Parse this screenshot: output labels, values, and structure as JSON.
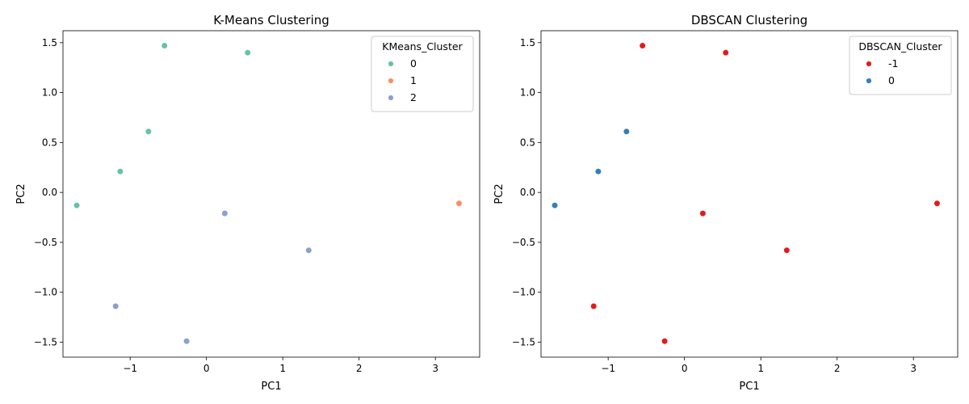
{
  "chart_data": [
    {
      "type": "scatter",
      "title": "K-Means Clustering",
      "xlabel": "PC1",
      "ylabel": "PC2",
      "xlim": [
        -1.88,
        3.58
      ],
      "ylim": [
        -1.65,
        1.62
      ],
      "xticks": [
        {
          "value": -1,
          "label": "−1"
        },
        {
          "value": 0,
          "label": "0"
        },
        {
          "value": 1,
          "label": "1"
        },
        {
          "value": 2,
          "label": "2"
        },
        {
          "value": 3,
          "label": "3"
        }
      ],
      "yticks": [
        {
          "value": -1.5,
          "label": "−1.5"
        },
        {
          "value": -1.0,
          "label": "−1.0"
        },
        {
          "value": -0.5,
          "label": "−0.5"
        },
        {
          "value": 0.0,
          "label": "0.0"
        },
        {
          "value": 0.5,
          "label": "0.5"
        },
        {
          "value": 1.0,
          "label": "1.0"
        },
        {
          "value": 1.5,
          "label": "1.5"
        }
      ],
      "legend": {
        "title": "KMeans_Cluster",
        "position": "upper right",
        "entries": [
          {
            "label": "0",
            "color": "#66c2a5"
          },
          {
            "label": "1",
            "color": "#fc8d62"
          },
          {
            "label": "2",
            "color": "#8da0cb"
          }
        ]
      },
      "points": [
        {
          "x": -0.55,
          "y": 1.47,
          "cluster": "0"
        },
        {
          "x": 0.54,
          "y": 1.4,
          "cluster": "0"
        },
        {
          "x": -0.76,
          "y": 0.61,
          "cluster": "0"
        },
        {
          "x": -1.13,
          "y": 0.21,
          "cluster": "0"
        },
        {
          "x": -1.7,
          "y": -0.13,
          "cluster": "0"
        },
        {
          "x": 3.31,
          "y": -0.11,
          "cluster": "1"
        },
        {
          "x": 0.24,
          "y": -0.21,
          "cluster": "2"
        },
        {
          "x": 1.34,
          "y": -0.58,
          "cluster": "2"
        },
        {
          "x": -1.19,
          "y": -1.14,
          "cluster": "2"
        },
        {
          "x": -0.26,
          "y": -1.49,
          "cluster": "2"
        }
      ]
    },
    {
      "type": "scatter",
      "title": "DBSCAN Clustering",
      "xlabel": "PC1",
      "ylabel": "PC2",
      "xlim": [
        -1.88,
        3.58
      ],
      "ylim": [
        -1.65,
        1.62
      ],
      "xticks": [
        {
          "value": -1,
          "label": "−1"
        },
        {
          "value": 0,
          "label": "0"
        },
        {
          "value": 1,
          "label": "1"
        },
        {
          "value": 2,
          "label": "2"
        },
        {
          "value": 3,
          "label": "3"
        }
      ],
      "yticks": [
        {
          "value": -1.5,
          "label": "−1.5"
        },
        {
          "value": -1.0,
          "label": "−1.0"
        },
        {
          "value": -0.5,
          "label": "−0.5"
        },
        {
          "value": 0.0,
          "label": "0.0"
        },
        {
          "value": 0.5,
          "label": "0.5"
        },
        {
          "value": 1.0,
          "label": "1.0"
        },
        {
          "value": 1.5,
          "label": "1.5"
        }
      ],
      "legend": {
        "title": "DBSCAN_Cluster",
        "position": "upper right",
        "entries": [
          {
            "label": "-1",
            "color": "#e41a1c"
          },
          {
            "label": "0",
            "color": "#377eb8"
          }
        ]
      },
      "points": [
        {
          "x": -0.55,
          "y": 1.47,
          "cluster": "-1"
        },
        {
          "x": 0.54,
          "y": 1.4,
          "cluster": "-1"
        },
        {
          "x": -0.76,
          "y": 0.61,
          "cluster": "0"
        },
        {
          "x": -1.13,
          "y": 0.21,
          "cluster": "0"
        },
        {
          "x": -1.7,
          "y": -0.13,
          "cluster": "0"
        },
        {
          "x": 3.31,
          "y": -0.11,
          "cluster": "-1"
        },
        {
          "x": 0.24,
          "y": -0.21,
          "cluster": "-1"
        },
        {
          "x": 1.34,
          "y": -0.58,
          "cluster": "-1"
        },
        {
          "x": -1.19,
          "y": -1.14,
          "cluster": "-1"
        },
        {
          "x": -0.26,
          "y": -1.49,
          "cluster": "-1"
        }
      ]
    }
  ]
}
